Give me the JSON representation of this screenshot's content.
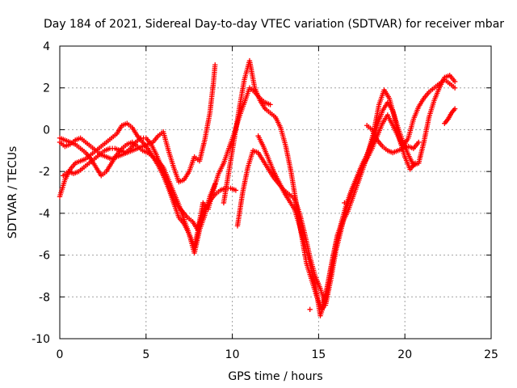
{
  "chart_data": {
    "type": "scatter",
    "title": "Day 184 of 2021, Sidereal Day-to-day VTEC variation (SDTVAR) for receiver mbar",
    "xlabel": "GPS time / hours",
    "ylabel": "SDTVAR / TECUs",
    "xlim": [
      0,
      25
    ],
    "ylim": [
      -10,
      4
    ],
    "xticks": [
      0,
      5,
      10,
      15,
      20,
      25
    ],
    "yticks": [
      -10,
      -8,
      -6,
      -4,
      -2,
      0,
      2,
      4
    ],
    "grid": true,
    "legend": "none",
    "marker": "+",
    "color": "#ff0000",
    "series": [
      {
        "x": [
          0.0,
          0.3,
          0.6,
          0.9,
          1.2,
          1.5,
          1.8,
          2.1,
          2.4,
          2.7,
          3.0,
          3.3,
          3.6,
          3.9,
          4.2,
          4.5,
          4.8,
          5.1,
          5.4,
          5.7,
          6.0,
          6.3,
          6.6,
          6.9,
          7.2,
          7.5,
          7.8,
          8.1,
          8.4,
          8.7,
          9.0,
          9.3,
          9.6,
          9.9,
          10.2
        ],
        "y": [
          -3.2,
          -2.4,
          -1.9,
          -1.6,
          -1.5,
          -1.4,
          -1.2,
          -1.0,
          -0.8,
          -0.6,
          -0.4,
          -0.2,
          0.2,
          0.3,
          0.1,
          -0.3,
          -0.6,
          -0.9,
          -1.3,
          -1.7,
          -2.2,
          -2.8,
          -3.5,
          -4.2,
          -4.5,
          -5.0,
          -5.6,
          -4.5,
          -3.8,
          -3.4,
          -3.1,
          -2.9,
          -2.8,
          -2.8,
          -2.9
        ]
      },
      {
        "x": [
          0.0,
          0.3,
          0.6,
          0.9,
          1.2,
          1.5,
          1.8,
          2.1,
          2.4,
          2.7,
          3.0,
          3.3,
          3.6,
          3.9,
          4.2,
          4.5,
          4.8,
          5.1,
          5.4,
          5.7,
          6.0,
          6.3,
          6.6,
          6.9,
          7.2,
          7.5,
          7.8,
          8.1,
          8.4,
          8.7,
          8.9,
          9.0
        ],
        "y": [
          -0.6,
          -0.8,
          -0.7,
          -0.5,
          -0.4,
          -0.6,
          -0.8,
          -1.0,
          -1.2,
          -1.3,
          -1.4,
          -1.3,
          -1.2,
          -1.1,
          -1.0,
          -0.9,
          -0.8,
          -0.7,
          -0.6,
          -0.3,
          -0.1,
          -1.0,
          -1.8,
          -2.5,
          -2.4,
          -2.0,
          -1.3,
          -1.5,
          -0.5,
          0.8,
          2.2,
          3.1
        ]
      },
      {
        "x": [
          0.0,
          0.3,
          0.6,
          0.9,
          1.2,
          1.5,
          1.8,
          2.1,
          2.4,
          2.7,
          3.0,
          3.3,
          3.6,
          3.9,
          4.2,
          4.5,
          4.8,
          5.1,
          5.4,
          5.7,
          6.0,
          6.3,
          6.6,
          6.9,
          7.2,
          7.5,
          7.8,
          8.1,
          8.4,
          8.7,
          9.0
        ],
        "y": [
          -0.4,
          -0.5,
          -0.6,
          -0.7,
          -0.9,
          -1.1,
          -1.4,
          -1.8,
          -2.2,
          -2.0,
          -1.6,
          -1.2,
          -0.9,
          -0.7,
          -0.6,
          -0.8,
          -1.0,
          -1.1,
          -1.3,
          -1.5,
          -1.8,
          -2.4,
          -3.0,
          -3.6,
          -4.3,
          -5.0,
          -5.9,
          -4.8,
          -4.1,
          -3.2,
          -2.6
        ]
      },
      {
        "x": [
          0.2,
          0.5,
          0.8,
          1.1,
          1.4,
          1.7,
          2.0,
          2.3,
          2.6,
          2.9,
          3.2,
          3.5,
          3.8,
          4.1,
          4.4,
          4.7,
          5.0,
          5.3,
          5.6,
          5.9,
          6.2,
          6.5,
          6.8,
          7.1,
          7.4,
          7.7,
          8.0,
          8.3,
          8.6,
          8.9,
          9.2,
          9.5,
          9.8,
          10.1,
          10.4,
          10.7,
          11.0,
          11.3,
          11.6,
          11.9,
          12.2
        ],
        "y": [
          -2.2,
          -2.0,
          -2.1,
          -2.0,
          -1.8,
          -1.6,
          -1.4,
          -1.2,
          -1.0,
          -0.9,
          -0.9,
          -1.0,
          -1.1,
          -0.9,
          -0.6,
          -0.4,
          -0.4,
          -0.7,
          -1.2,
          -1.8,
          -2.4,
          -3.1,
          -3.6,
          -3.9,
          -4.2,
          -4.4,
          -4.8,
          -3.5,
          -3.8,
          -2.9,
          -2.1,
          -1.6,
          -0.9,
          -0.2,
          0.6,
          1.3,
          2.0,
          1.8,
          1.5,
          1.3,
          1.2
        ]
      },
      {
        "x": [
          9.5,
          9.8,
          10.1,
          10.4,
          10.7,
          11.0,
          11.3,
          11.6,
          11.9,
          12.2,
          12.5,
          12.8,
          13.1,
          13.4,
          13.7,
          14.0,
          14.3,
          14.6,
          14.9,
          15.2,
          15.5,
          15.8,
          16.1,
          16.4,
          16.7,
          17.0,
          17.3,
          17.6,
          17.9,
          18.2,
          18.5,
          18.8,
          19.1,
          19.4,
          19.7,
          20.0,
          20.3,
          20.6
        ],
        "y": [
          -3.5,
          -2.0,
          -0.5,
          1.0,
          2.4,
          3.3,
          2.0,
          1.4,
          1.0,
          0.8,
          0.6,
          0.1,
          -0.8,
          -2.0,
          -3.5,
          -5.0,
          -6.4,
          -7.2,
          -8.0,
          -8.6,
          -7.5,
          -6.2,
          -5.0,
          -4.4,
          -3.9,
          -3.2,
          -2.5,
          -1.8,
          -1.0,
          -0.1,
          1.2,
          1.9,
          1.5,
          0.6,
          -0.5,
          -1.3,
          -1.9,
          -1.6
        ]
      },
      {
        "x": [
          10.3,
          10.6,
          10.9,
          11.2,
          11.5,
          11.8,
          12.1,
          12.4,
          12.7,
          13.0,
          13.3,
          13.6,
          13.9,
          14.2,
          14.5,
          14.8,
          15.1,
          15.4,
          15.7,
          16.0,
          16.3,
          16.6,
          16.9,
          17.2,
          17.5,
          17.8,
          18.1,
          18.4,
          18.7,
          19.0,
          19.3,
          19.6,
          19.9,
          20.2,
          20.5,
          20.8,
          21.1,
          21.4,
          21.7,
          22.0,
          22.3,
          22.6,
          22.9
        ],
        "y": [
          -4.6,
          -3.0,
          -1.8,
          -1.0,
          -1.1,
          -1.5,
          -1.9,
          -2.3,
          -2.6,
          -2.9,
          -3.1,
          -3.3,
          -4.0,
          -5.0,
          -6.1,
          -7.0,
          -7.6,
          -8.4,
          -7.2,
          -5.8,
          -4.8,
          -3.8,
          -3.0,
          -2.4,
          -1.8,
          -1.4,
          -0.9,
          -0.3,
          0.3,
          0.7,
          0.2,
          -0.3,
          -0.8,
          -0.4,
          0.5,
          1.1,
          1.5,
          1.8,
          2.0,
          2.2,
          2.4,
          2.2,
          2.0
        ]
      },
      {
        "x": [
          11.5,
          11.8,
          12.1,
          12.4,
          12.7,
          13.0,
          13.3,
          13.6,
          13.9,
          14.2,
          14.5,
          14.8,
          15.1,
          15.4,
          15.7,
          16.0,
          16.3,
          16.6,
          16.9,
          17.2,
          17.5,
          17.8,
          18.1,
          18.4,
          18.7,
          19.0,
          19.3,
          19.6,
          19.9,
          20.2,
          20.5,
          20.8,
          21.1,
          21.4,
          21.7,
          22.0,
          22.3,
          22.6,
          22.9
        ],
        "y": [
          -0.3,
          -0.8,
          -1.4,
          -2.0,
          -2.5,
          -3.0,
          -3.4,
          -3.8,
          -4.6,
          -5.5,
          -6.4,
          -7.4,
          -8.9,
          -8.1,
          -6.8,
          -5.5,
          -4.5,
          -3.6,
          -2.9,
          -2.3,
          -1.7,
          -1.2,
          -0.6,
          0.2,
          0.9,
          1.3,
          0.9,
          0.1,
          -0.6,
          -1.2,
          -1.7,
          -1.6,
          -0.6,
          0.6,
          1.4,
          2.0,
          2.5,
          2.6,
          2.3
        ]
      },
      {
        "x": [
          17.8,
          18.1,
          18.4,
          18.7,
          19.0,
          19.3,
          19.6,
          19.9,
          20.2,
          20.5,
          20.8
        ],
        "y": [
          0.2,
          0.0,
          -0.5,
          -0.8,
          -1.0,
          -1.1,
          -1.0,
          -0.9,
          -0.8,
          -0.9,
          -0.6
        ]
      },
      {
        "x": [
          22.3,
          22.5,
          22.7,
          22.9
        ],
        "y": [
          0.3,
          0.5,
          0.8,
          1.0
        ]
      },
      {
        "x": [
          14.5,
          16.5
        ],
        "y": [
          -8.6,
          -3.5
        ]
      }
    ]
  }
}
